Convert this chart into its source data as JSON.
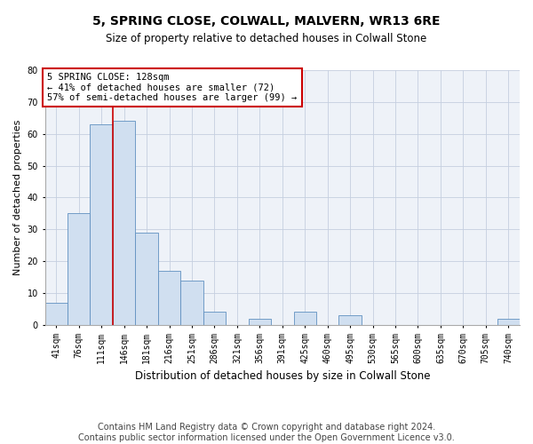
{
  "title": "5, SPRING CLOSE, COLWALL, MALVERN, WR13 6RE",
  "subtitle": "Size of property relative to detached houses in Colwall Stone",
  "xlabel": "Distribution of detached houses by size in Colwall Stone",
  "ylabel": "Number of detached properties",
  "footnote1": "Contains HM Land Registry data © Crown copyright and database right 2024.",
  "footnote2": "Contains public sector information licensed under the Open Government Licence v3.0.",
  "annotation_line1": "5 SPRING CLOSE: 128sqm",
  "annotation_line2": "← 41% of detached houses are smaller (72)",
  "annotation_line3": "57% of semi-detached houses are larger (99) →",
  "bar_labels": [
    "41sqm",
    "76sqm",
    "111sqm",
    "146sqm",
    "181sqm",
    "216sqm",
    "251sqm",
    "286sqm",
    "321sqm",
    "356sqm",
    "391sqm",
    "425sqm",
    "460sqm",
    "495sqm",
    "530sqm",
    "565sqm",
    "600sqm",
    "635sqm",
    "670sqm",
    "705sqm",
    "740sqm"
  ],
  "bar_values": [
    7,
    35,
    63,
    64,
    29,
    17,
    14,
    4,
    0,
    2,
    0,
    4,
    0,
    3,
    0,
    0,
    0,
    0,
    0,
    0,
    2
  ],
  "bar_color": "#d0dff0",
  "bar_edge_color": "#6090c0",
  "vline_x": 2.5,
  "ylim": [
    0,
    80
  ],
  "yticks": [
    0,
    10,
    20,
    30,
    40,
    50,
    60,
    70,
    80
  ],
  "annotation_box_color": "#cc0000",
  "vline_color": "#cc0000",
  "bg_color": "#eef2f8",
  "grid_color": "#c5cfe0",
  "title_fontsize": 10,
  "subtitle_fontsize": 8.5,
  "xlabel_fontsize": 8.5,
  "ylabel_fontsize": 8,
  "tick_fontsize": 7,
  "footnote_fontsize": 7,
  "annotation_fontsize": 7.5
}
